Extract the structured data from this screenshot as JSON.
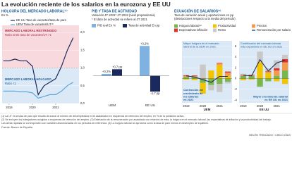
{
  "title": "La evolución reciente de los salarios en la eurozona y EE UU",
  "chart_data": [
    {
      "type": "line",
      "title": "HOLGURA DEL MERCADO LABORAL⁽¹⁾",
      "subtitle": "En %",
      "x": [
        2018.75,
        2019,
        2019.25,
        2019.5,
        2019.75,
        2020,
        2020.25,
        2020.5,
        2020.75,
        2021,
        2021.25,
        2021.5,
        2021.75
      ],
      "series": [
        {
          "name": "EE UU Tasa de vacantes/tasa de paro",
          "color": "#1b2a5e",
          "values": [
            1.2,
            1.2,
            1.25,
            1.2,
            1.2,
            1.05,
            0.25,
            0.5,
            0.6,
            0.7,
            1.05,
            1.5,
            1.85
          ]
        },
        {
          "name": "UEM Tasa de vacantes/UT⁽²⁾",
          "color": "#5aa7e0",
          "values": [
            0.35,
            0.35,
            0.35,
            0.33,
            0.33,
            0.3,
            0.15,
            0.2,
            0.25,
            0.25,
            0.35,
            0.5,
            0.6
          ]
        }
      ],
      "threshold": 1,
      "annotations": [
        "MERCADO LABORAL RESTRINGIDO",
        "Ratio entre tasa de vacantes/UT >1",
        "MERCADO LABORAL HOLGADO",
        "Ratio <1"
      ],
      "xlim": [
        2018.7,
        2022
      ],
      "xticks": [
        2019,
        2020,
        2021
      ],
      "ylim": [
        0,
        2.2
      ],
      "yticks": [
        {
          "value": 0,
          "label": "0,0"
        },
        {
          "value": 0.5,
          "label": "0,5"
        },
        {
          "value": 1,
          "label": "1,0"
        },
        {
          "value": 1.5,
          "label": "1,5"
        },
        {
          "value": 2,
          "label": "2,0"
        }
      ]
    },
    {
      "type": "bar",
      "title": "PIB Y TASA DE ACTIVIDAD",
      "subtitle": "Variación 4T 2021* 4T 2019 (nivel prepandemia)",
      "note": "* El dato de actividad se refiere al 3T 2021",
      "categories": [
        "UEM",
        "EE UU"
      ],
      "series": [
        {
          "name": "PIB real En %",
          "color": "#7fb2e0",
          "values": [
            0.2,
            3.2
          ],
          "value_labels": [
            "+0,2%",
            "+3,2%"
          ]
        },
        {
          "name": "Tasa de actividad En pp",
          "color": "#1b2a5e",
          "values": [
            0.7,
            -1.7
          ],
          "value_labels": [
            "+0,7 pp",
            "-1,7 pp"
          ]
        }
      ],
      "ylim": [
        -2.6,
        4.2
      ]
    },
    {
      "type": "stacked-bar",
      "title": "ECUACIÓN DE SALARIOS⁽³⁾",
      "subtitle": [
        "Tasa de variación anual y aportaciones en pp",
        "(desviaciones respecto a la media del periodo)"
      ],
      "panels": [
        {
          "name": "UEM",
          "categories": [
            "2019",
            null,
            "2020",
            null,
            "2021",
            null
          ],
          "top": [
            "Mayor holgura en el mercado",
            "laboral de la UEM en 2021"
          ],
          "bottom": [
            "Contención del",
            "crecimiento de",
            "los salarios",
            "en 2021"
          ]
        },
        {
          "name": "EE UU",
          "categories": [
            "2019",
            null,
            "2020",
            null,
            "2021",
            null
          ],
          "top": [
            "Contribución del mercado laboral",
            "más expansiva en EE UU en 2021"
          ],
          "bottom": [
            "Mayor crecimiento salarial",
            "en EE UU en 2021"
          ]
        }
      ],
      "series": [
        {
          "name": "Holgura laboral⁽⁴⁾",
          "color": "#7ab648",
          "values": [
            [
              0.3,
              0.3,
              -0.8,
              -1.2,
              -1.0,
              -0.6
            ],
            [
              0.5,
              0.5,
              -1.5,
              -0.5,
              0.5,
              1.5
            ]
          ]
        },
        {
          "name": "Productividad",
          "color": "#f2c500",
          "values": [
            [
              -0.2,
              -0.3,
              -2.0,
              1.5,
              2.5,
              0.5
            ],
            [
              -0.3,
              -0.2,
              3.0,
              1.0,
              -0.5,
              -1.0
            ]
          ]
        },
        {
          "name": "Precios",
          "color": "#f39a4c",
          "values": [
            [
              0.2,
              0.2,
              0.1,
              0.0,
              0.3,
              0.6
            ],
            [
              0.1,
              0.1,
              0.0,
              0.3,
              1.0,
              1.5
            ]
          ]
        },
        {
          "name": "Expectativas inflación",
          "color": "#e0302e",
          "values": [
            [
              0.1,
              0.1,
              0.0,
              0.0,
              0.1,
              0.2
            ],
            [
              0.1,
              0.1,
              0.0,
              0.1,
              0.4,
              0.6
            ]
          ]
        },
        {
          "name": "Resto",
          "color": "#c8c8c8",
          "values": [
            [
              0.1,
              0.0,
              2.5,
              -1.0,
              -1.5,
              -0.3
            ],
            [
              0.2,
              0.0,
              2.0,
              0.5,
              1.5,
              0.8
            ]
          ]
        },
        {
          "name": "Remuneración por salario",
          "color": "#1b2a5e",
          "kind": "line",
          "values": [
            [
              0.5,
              0.3,
              -0.2,
              -0.7,
              0.4,
              0.4
            ],
            [
              0.6,
              0.5,
              3.5,
              1.4,
              2.9,
              3.4
            ]
          ]
        }
      ],
      "ylim": [
        -4.5,
        7
      ],
      "yticks": [
        -4,
        -2,
        0,
        2,
        4,
        6
      ]
    }
  ],
  "footnotes": [
    "(1) La UT es la tasa de paro que resulta de sumar al número de desempleados el de asalariados en esquemas de retención del empleo, en % de la población activa.",
    "(2) Se incluyen los trabajadores acogidos a esquemas de retención del empleo. (3) Estimación de la remuneración por asalariado con retardos de esta, la holgura en el mercado laboral, las expectativas de inflación y la productividad del trabajo.",
    "Las áreas rayadas se corresponden con variables distorsionadas en los periodos de referencia. (4) La holgura laboral se aproxima como la tasa de paro menos el desempleo de equilibrio."
  ],
  "source": "Fuente: Banco de España",
  "credit": "BELÉN TRINCADO / CINCO DÍAS"
}
